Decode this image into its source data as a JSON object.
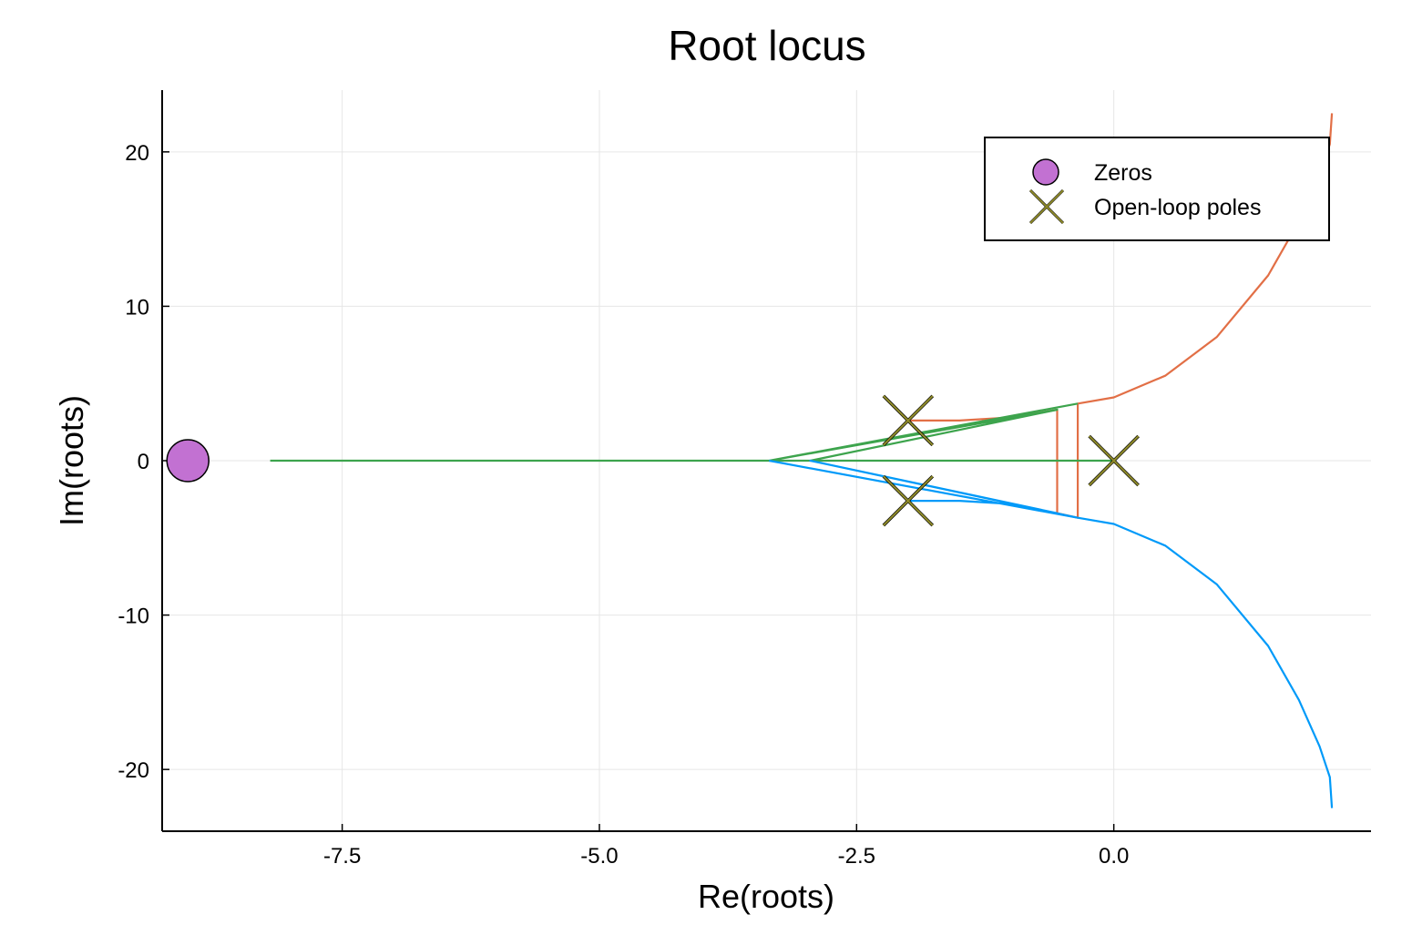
{
  "chart_data": {
    "type": "scatter",
    "title": "Root locus",
    "xlabel": "Re(roots)",
    "ylabel": "Im(roots)",
    "xlim": [
      -9.25,
      2.5
    ],
    "ylim": [
      -24,
      24
    ],
    "xticks": [
      -7.5,
      -5.0,
      -2.5,
      0.0
    ],
    "xtick_labels": [
      "-7.5",
      "-5.0",
      "-2.5",
      "0.0"
    ],
    "yticks": [
      -20,
      -10,
      0,
      10,
      20
    ],
    "ytick_labels": [
      "-20",
      "-10",
      "0",
      "10",
      "20"
    ],
    "grid": true,
    "legend_position": "top-right",
    "zeros": {
      "name": "Zeros",
      "color": "#c271d2",
      "points": [
        [
          -9.0,
          0.0
        ]
      ]
    },
    "poles": {
      "name": "Open-loop poles",
      "color": "#8f8b2a",
      "points": [
        [
          -2.0,
          2.6
        ],
        [
          -2.0,
          -2.6
        ],
        [
          0.0,
          0.0
        ]
      ]
    },
    "series": [
      {
        "color": "#e26f46",
        "points": [
          [
            -2.0,
            2.6
          ],
          [
            -1.5,
            2.6
          ],
          [
            -1.0,
            2.8
          ],
          [
            -0.55,
            3.3
          ],
          [
            -0.55,
            -3.4
          ],
          [
            -0.35,
            -3.7
          ],
          [
            -0.35,
            3.7
          ],
          [
            0.0,
            4.1
          ],
          [
            0.5,
            5.5
          ],
          [
            1.0,
            8.0
          ],
          [
            1.5,
            12.0
          ],
          [
            1.8,
            15.5
          ],
          [
            2.0,
            18.5
          ],
          [
            2.1,
            20.5
          ],
          [
            2.12,
            22.5
          ]
        ]
      },
      {
        "color": "#3da44d",
        "points": [
          [
            -0.35,
            3.7
          ],
          [
            -3.35,
            0.0
          ],
          [
            -0.55,
            3.3
          ],
          [
            -2.95,
            0.0
          ],
          [
            0.0,
            0.0
          ],
          [
            -8.2,
            0.0
          ]
        ]
      },
      {
        "color": "#009af9",
        "points": [
          [
            -3.35,
            0.0
          ],
          [
            -0.35,
            -3.7
          ],
          [
            -2.95,
            0.0
          ],
          [
            -0.55,
            -3.4
          ],
          [
            -1.0,
            -2.8
          ],
          [
            -1.5,
            -2.6
          ],
          [
            -2.0,
            -2.6
          ],
          [
            -1.5,
            -2.6
          ],
          [
            -1.0,
            -2.8
          ],
          [
            -0.35,
            -3.7
          ],
          [
            0.0,
            -4.1
          ],
          [
            0.5,
            -5.5
          ],
          [
            1.0,
            -8.0
          ],
          [
            1.5,
            -12.0
          ],
          [
            1.8,
            -15.5
          ],
          [
            2.0,
            -18.5
          ],
          [
            2.1,
            -20.5
          ],
          [
            2.12,
            -22.5
          ]
        ]
      }
    ]
  }
}
